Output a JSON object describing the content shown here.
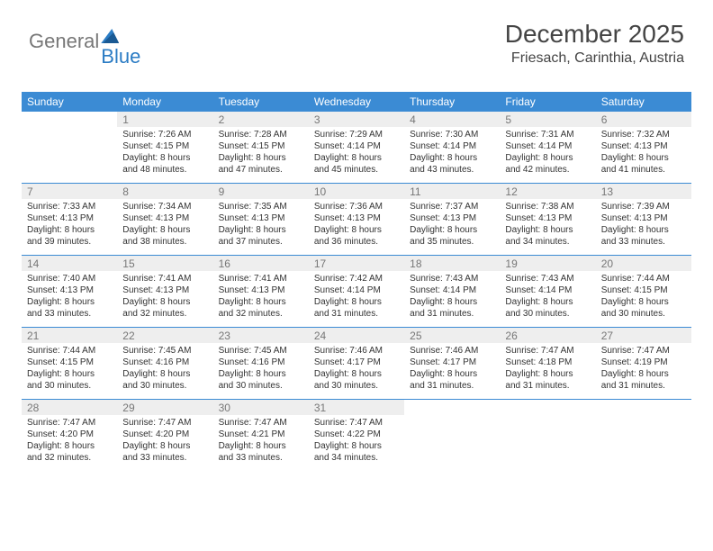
{
  "logo": {
    "part1": "General",
    "part2": "Blue"
  },
  "header": {
    "title": "December 2025",
    "location": "Friesach, Carinthia, Austria"
  },
  "colors": {
    "header_bg": "#3b8bd4",
    "header_text": "#ffffff",
    "daynum_bg": "#eeeeee",
    "daynum_text": "#777777",
    "row_border": "#3b8bd4",
    "body_text": "#333333"
  },
  "font": {
    "family": "Arial",
    "title_size": 28,
    "loc_size": 16,
    "header_size": 12,
    "body_size": 10
  },
  "daynames": [
    "Sunday",
    "Monday",
    "Tuesday",
    "Wednesday",
    "Thursday",
    "Friday",
    "Saturday"
  ],
  "weeks": [
    [
      {
        "blank": true
      },
      {
        "n": "1",
        "sr": "Sunrise: 7:26 AM",
        "ss": "Sunset: 4:15 PM",
        "d1": "Daylight: 8 hours",
        "d2": "and 48 minutes."
      },
      {
        "n": "2",
        "sr": "Sunrise: 7:28 AM",
        "ss": "Sunset: 4:15 PM",
        "d1": "Daylight: 8 hours",
        "d2": "and 47 minutes."
      },
      {
        "n": "3",
        "sr": "Sunrise: 7:29 AM",
        "ss": "Sunset: 4:14 PM",
        "d1": "Daylight: 8 hours",
        "d2": "and 45 minutes."
      },
      {
        "n": "4",
        "sr": "Sunrise: 7:30 AM",
        "ss": "Sunset: 4:14 PM",
        "d1": "Daylight: 8 hours",
        "d2": "and 43 minutes."
      },
      {
        "n": "5",
        "sr": "Sunrise: 7:31 AM",
        "ss": "Sunset: 4:14 PM",
        "d1": "Daylight: 8 hours",
        "d2": "and 42 minutes."
      },
      {
        "n": "6",
        "sr": "Sunrise: 7:32 AM",
        "ss": "Sunset: 4:13 PM",
        "d1": "Daylight: 8 hours",
        "d2": "and 41 minutes."
      }
    ],
    [
      {
        "n": "7",
        "sr": "Sunrise: 7:33 AM",
        "ss": "Sunset: 4:13 PM",
        "d1": "Daylight: 8 hours",
        "d2": "and 39 minutes."
      },
      {
        "n": "8",
        "sr": "Sunrise: 7:34 AM",
        "ss": "Sunset: 4:13 PM",
        "d1": "Daylight: 8 hours",
        "d2": "and 38 minutes."
      },
      {
        "n": "9",
        "sr": "Sunrise: 7:35 AM",
        "ss": "Sunset: 4:13 PM",
        "d1": "Daylight: 8 hours",
        "d2": "and 37 minutes."
      },
      {
        "n": "10",
        "sr": "Sunrise: 7:36 AM",
        "ss": "Sunset: 4:13 PM",
        "d1": "Daylight: 8 hours",
        "d2": "and 36 minutes."
      },
      {
        "n": "11",
        "sr": "Sunrise: 7:37 AM",
        "ss": "Sunset: 4:13 PM",
        "d1": "Daylight: 8 hours",
        "d2": "and 35 minutes."
      },
      {
        "n": "12",
        "sr": "Sunrise: 7:38 AM",
        "ss": "Sunset: 4:13 PM",
        "d1": "Daylight: 8 hours",
        "d2": "and 34 minutes."
      },
      {
        "n": "13",
        "sr": "Sunrise: 7:39 AM",
        "ss": "Sunset: 4:13 PM",
        "d1": "Daylight: 8 hours",
        "d2": "and 33 minutes."
      }
    ],
    [
      {
        "n": "14",
        "sr": "Sunrise: 7:40 AM",
        "ss": "Sunset: 4:13 PM",
        "d1": "Daylight: 8 hours",
        "d2": "and 33 minutes."
      },
      {
        "n": "15",
        "sr": "Sunrise: 7:41 AM",
        "ss": "Sunset: 4:13 PM",
        "d1": "Daylight: 8 hours",
        "d2": "and 32 minutes."
      },
      {
        "n": "16",
        "sr": "Sunrise: 7:41 AM",
        "ss": "Sunset: 4:13 PM",
        "d1": "Daylight: 8 hours",
        "d2": "and 32 minutes."
      },
      {
        "n": "17",
        "sr": "Sunrise: 7:42 AM",
        "ss": "Sunset: 4:14 PM",
        "d1": "Daylight: 8 hours",
        "d2": "and 31 minutes."
      },
      {
        "n": "18",
        "sr": "Sunrise: 7:43 AM",
        "ss": "Sunset: 4:14 PM",
        "d1": "Daylight: 8 hours",
        "d2": "and 31 minutes."
      },
      {
        "n": "19",
        "sr": "Sunrise: 7:43 AM",
        "ss": "Sunset: 4:14 PM",
        "d1": "Daylight: 8 hours",
        "d2": "and 30 minutes."
      },
      {
        "n": "20",
        "sr": "Sunrise: 7:44 AM",
        "ss": "Sunset: 4:15 PM",
        "d1": "Daylight: 8 hours",
        "d2": "and 30 minutes."
      }
    ],
    [
      {
        "n": "21",
        "sr": "Sunrise: 7:44 AM",
        "ss": "Sunset: 4:15 PM",
        "d1": "Daylight: 8 hours",
        "d2": "and 30 minutes."
      },
      {
        "n": "22",
        "sr": "Sunrise: 7:45 AM",
        "ss": "Sunset: 4:16 PM",
        "d1": "Daylight: 8 hours",
        "d2": "and 30 minutes."
      },
      {
        "n": "23",
        "sr": "Sunrise: 7:45 AM",
        "ss": "Sunset: 4:16 PM",
        "d1": "Daylight: 8 hours",
        "d2": "and 30 minutes."
      },
      {
        "n": "24",
        "sr": "Sunrise: 7:46 AM",
        "ss": "Sunset: 4:17 PM",
        "d1": "Daylight: 8 hours",
        "d2": "and 30 minutes."
      },
      {
        "n": "25",
        "sr": "Sunrise: 7:46 AM",
        "ss": "Sunset: 4:17 PM",
        "d1": "Daylight: 8 hours",
        "d2": "and 31 minutes."
      },
      {
        "n": "26",
        "sr": "Sunrise: 7:47 AM",
        "ss": "Sunset: 4:18 PM",
        "d1": "Daylight: 8 hours",
        "d2": "and 31 minutes."
      },
      {
        "n": "27",
        "sr": "Sunrise: 7:47 AM",
        "ss": "Sunset: 4:19 PM",
        "d1": "Daylight: 8 hours",
        "d2": "and 31 minutes."
      }
    ],
    [
      {
        "n": "28",
        "sr": "Sunrise: 7:47 AM",
        "ss": "Sunset: 4:20 PM",
        "d1": "Daylight: 8 hours",
        "d2": "and 32 minutes."
      },
      {
        "n": "29",
        "sr": "Sunrise: 7:47 AM",
        "ss": "Sunset: 4:20 PM",
        "d1": "Daylight: 8 hours",
        "d2": "and 33 minutes."
      },
      {
        "n": "30",
        "sr": "Sunrise: 7:47 AM",
        "ss": "Sunset: 4:21 PM",
        "d1": "Daylight: 8 hours",
        "d2": "and 33 minutes."
      },
      {
        "n": "31",
        "sr": "Sunrise: 7:47 AM",
        "ss": "Sunset: 4:22 PM",
        "d1": "Daylight: 8 hours",
        "d2": "and 34 minutes."
      },
      {
        "blank": true
      },
      {
        "blank": true
      },
      {
        "blank": true
      }
    ]
  ]
}
